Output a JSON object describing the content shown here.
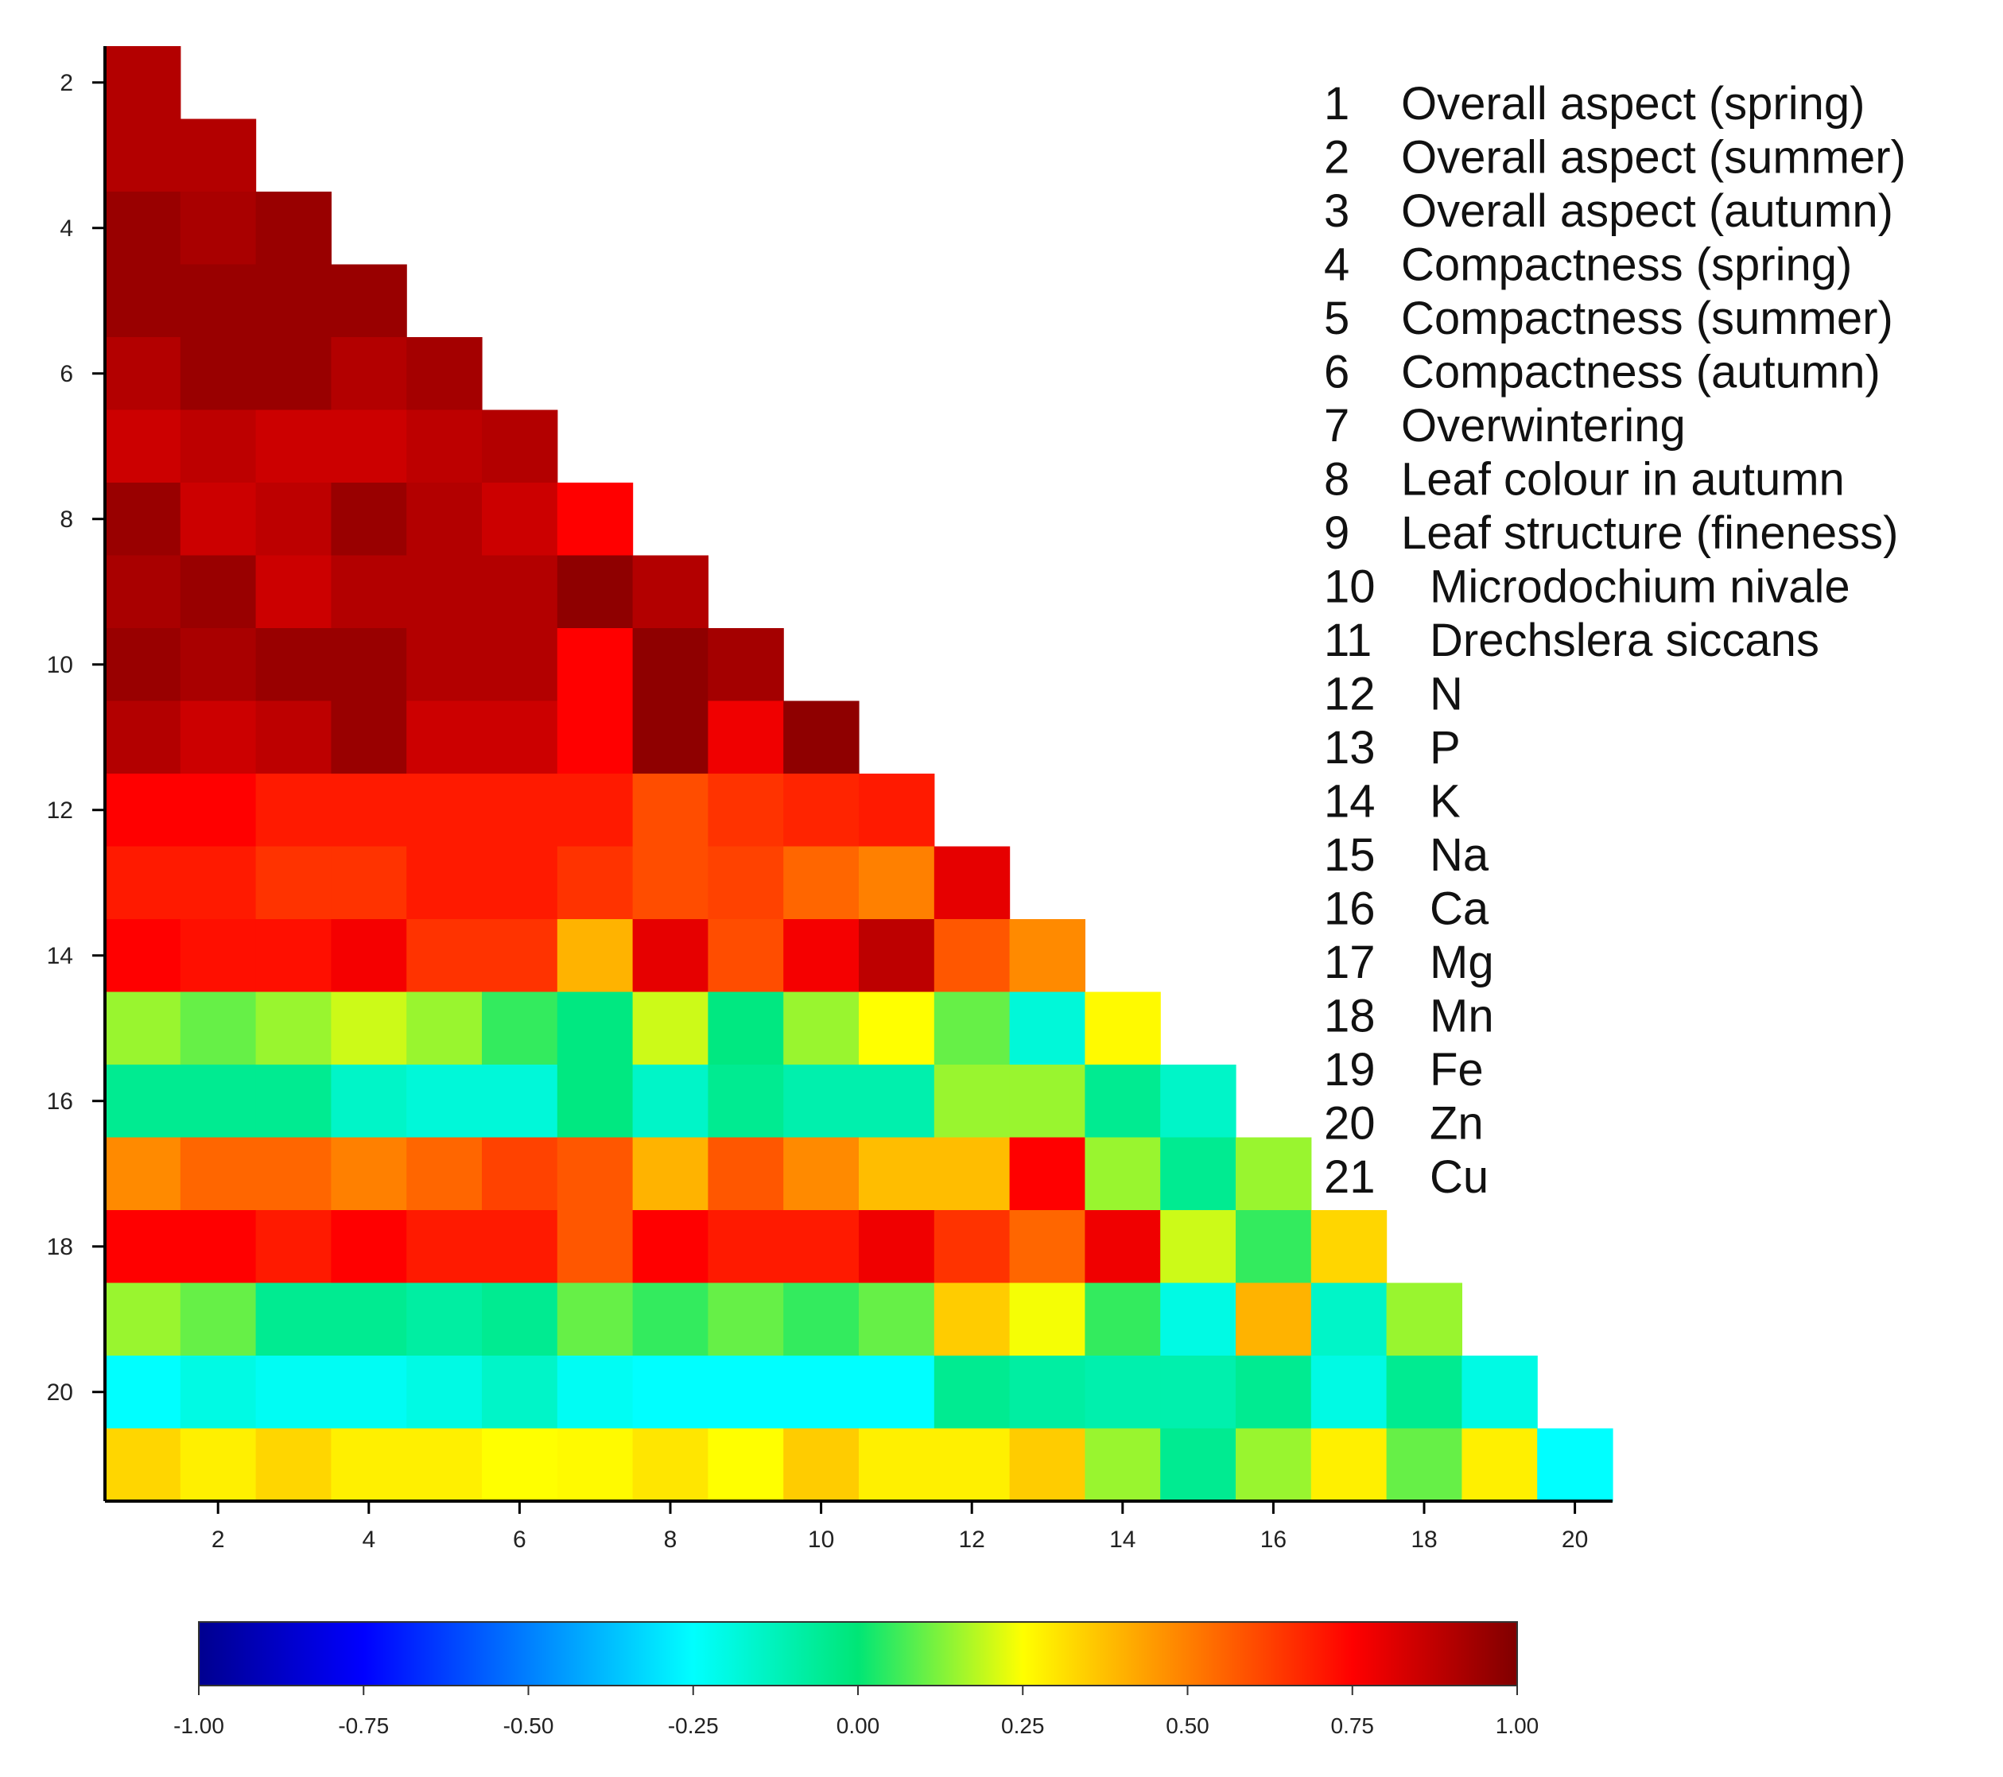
{
  "chart_data": {
    "type": "heatmap",
    "title": "",
    "xlabel": "",
    "ylabel": "",
    "x_ticks": [
      "2",
      "4",
      "6",
      "8",
      "10",
      "12",
      "14",
      "16",
      "18",
      "20"
    ],
    "y_ticks": [
      "2",
      "4",
      "6",
      "8",
      "10",
      "12",
      "14",
      "16",
      "18",
      "20"
    ],
    "color_range": [
      -1,
      1
    ],
    "colorbar_ticks": [
      "-1.00",
      "-0.75",
      "-0.50",
      "-0.25",
      "0.00",
      "0.25",
      "0.50",
      "0.75",
      "1.00"
    ],
    "variables": [
      {
        "num": "1",
        "name": "Overall aspect (spring)"
      },
      {
        "num": "2",
        "name": "Overall aspect (summer)"
      },
      {
        "num": "3",
        "name": "Overall aspect (autumn)"
      },
      {
        "num": "4",
        "name": "Compactness (spring)"
      },
      {
        "num": "5",
        "name": "Compactness (summer)"
      },
      {
        "num": "6",
        "name": "Compactness (autumn)"
      },
      {
        "num": "7",
        "name": "Overwintering"
      },
      {
        "num": "8",
        "name": "Leaf colour in autumn"
      },
      {
        "num": "9",
        "name": "Leaf structure (fineness)"
      },
      {
        "num": "10",
        "name": "Microdochium nivale"
      },
      {
        "num": "11",
        "name": "Drechslera siccans"
      },
      {
        "num": "12",
        "name": "N"
      },
      {
        "num": "13",
        "name": "P"
      },
      {
        "num": "14",
        "name": "K"
      },
      {
        "num": "15",
        "name": "Na"
      },
      {
        "num": "16",
        "name": "Ca"
      },
      {
        "num": "17",
        "name": "Mg"
      },
      {
        "num": "18",
        "name": "Mn"
      },
      {
        "num": "19",
        "name": "Fe"
      },
      {
        "num": "20",
        "name": "Zn"
      },
      {
        "num": "21",
        "name": "Cu"
      }
    ],
    "rows": [
      {
        "row": 2,
        "values": [
          0.9
        ]
      },
      {
        "row": 3,
        "values": [
          0.9,
          0.9
        ]
      },
      {
        "row": 4,
        "values": [
          0.95,
          0.92,
          0.95
        ]
      },
      {
        "row": 5,
        "values": [
          0.95,
          0.95,
          0.95,
          0.95
        ]
      },
      {
        "row": 6,
        "values": [
          0.9,
          0.95,
          0.95,
          0.9,
          0.93
        ]
      },
      {
        "row": 7,
        "values": [
          0.85,
          0.88,
          0.85,
          0.85,
          0.88,
          0.9
        ]
      },
      {
        "row": 8,
        "values": [
          0.95,
          0.85,
          0.88,
          0.95,
          0.9,
          0.85,
          0.75
        ]
      },
      {
        "row": 9,
        "values": [
          0.92,
          0.95,
          0.85,
          0.9,
          0.9,
          0.9,
          0.97,
          0.9
        ]
      },
      {
        "row": 10,
        "values": [
          0.95,
          0.92,
          0.95,
          0.95,
          0.9,
          0.9,
          0.75,
          0.97,
          0.93
        ]
      },
      {
        "row": 11,
        "values": [
          0.9,
          0.85,
          0.88,
          0.95,
          0.85,
          0.85,
          0.75,
          0.97,
          0.78,
          0.97
        ]
      },
      {
        "row": 12,
        "values": [
          0.75,
          0.75,
          0.7,
          0.7,
          0.7,
          0.7,
          0.7,
          0.6,
          0.65,
          0.68,
          0.7
        ]
      },
      {
        "row": 13,
        "values": [
          0.7,
          0.7,
          0.65,
          0.65,
          0.7,
          0.7,
          0.65,
          0.6,
          0.62,
          0.55,
          0.5,
          0.8
        ]
      },
      {
        "row": 14,
        "values": [
          0.75,
          0.72,
          0.72,
          0.77,
          0.65,
          0.65,
          0.4,
          0.8,
          0.6,
          0.77,
          0.88,
          0.58,
          0.48
        ]
      },
      {
        "row": 15,
        "values": [
          0.15,
          0.1,
          0.15,
          0.2,
          0.15,
          0.05,
          -0.02,
          0.2,
          -0.02,
          0.15,
          0.25,
          0.1,
          -0.18,
          0.26
        ]
      },
      {
        "row": 16,
        "values": [
          -0.05,
          -0.05,
          -0.05,
          -0.15,
          -0.18,
          -0.18,
          -0.02,
          -0.15,
          -0.05,
          -0.1,
          -0.1,
          0.15,
          0.15,
          -0.05,
          -0.15
        ]
      },
      {
        "row": 17,
        "values": [
          0.48,
          0.55,
          0.55,
          0.5,
          0.55,
          0.62,
          0.58,
          0.4,
          0.58,
          0.48,
          0.38,
          0.38,
          0.75,
          0.15,
          -0.05,
          0.15
        ]
      },
      {
        "row": 18,
        "values": [
          0.75,
          0.75,
          0.7,
          0.75,
          0.7,
          0.7,
          0.58,
          0.75,
          0.7,
          0.7,
          0.78,
          0.65,
          0.55,
          0.78,
          0.2,
          0.05,
          0.33
        ]
      },
      {
        "row": 19,
        "values": [
          0.15,
          0.1,
          -0.05,
          -0.05,
          -0.08,
          -0.05,
          0.1,
          0.05,
          0.1,
          0.05,
          0.1,
          0.35,
          0.24,
          0.05,
          -0.2,
          0.4,
          -0.15,
          0.15
        ]
      },
      {
        "row": 20,
        "values": [
          -0.25,
          -0.2,
          -0.23,
          -0.23,
          -0.2,
          -0.15,
          -0.23,
          -0.25,
          -0.25,
          -0.25,
          -0.25,
          -0.05,
          -0.08,
          -0.1,
          -0.1,
          -0.05,
          -0.2,
          -0.05,
          -0.2
        ]
      },
      {
        "row": 21,
        "values": [
          0.33,
          0.28,
          0.33,
          0.28,
          0.28,
          0.25,
          0.26,
          0.3,
          0.25,
          0.35,
          0.28,
          0.28,
          0.35,
          0.15,
          -0.05,
          0.15,
          0.28,
          0.1,
          0.28,
          -0.25
        ]
      }
    ]
  }
}
